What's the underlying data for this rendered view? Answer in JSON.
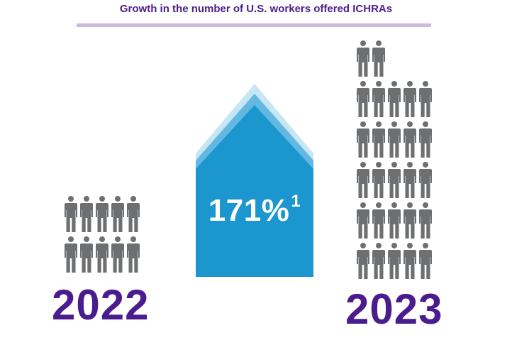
{
  "title": "Growth in the number of U.S. workers offered ICHRAs",
  "growth": {
    "value": "171%",
    "footnote": "1"
  },
  "years": [
    {
      "label": "2022",
      "people_icons": 10
    },
    {
      "label": "2023",
      "people_icons": 27
    }
  ],
  "icons": {
    "person": "person-icon",
    "arrow": "up-arrow-shape"
  },
  "colors": {
    "title": "#4B1F8C",
    "rule": "#C9BCDF",
    "year": "#4B1C8E",
    "person": "#6E6F71",
    "arrow_main": "#1B96CF",
    "arrow_mid": "#63B8E2",
    "arrow_light": "#C7E6F4"
  }
}
